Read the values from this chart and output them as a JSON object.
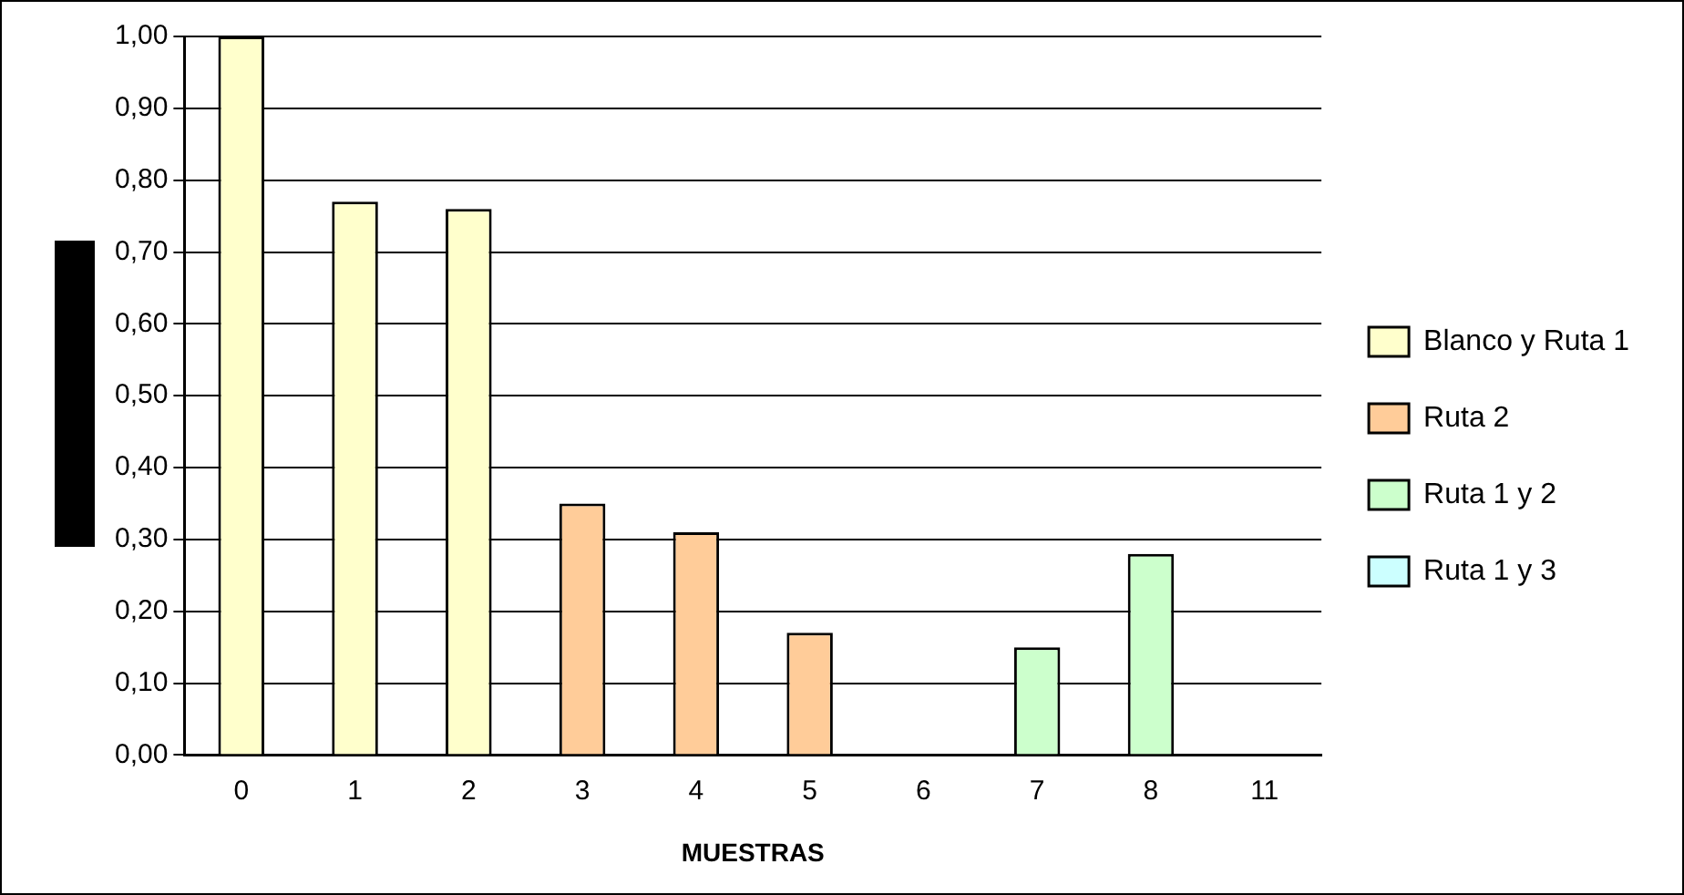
{
  "chart_data": {
    "type": "bar",
    "xlabel": "MUESTRAS",
    "categories": [
      "0",
      "1",
      "2",
      "3",
      "4",
      "5",
      "6",
      "7",
      "8",
      "11"
    ],
    "series": [
      {
        "name": "Blanco y Ruta 1",
        "color": "#ffffcc",
        "values": [
          1.0,
          0.77,
          0.76,
          null,
          null,
          null,
          null,
          null,
          null,
          null
        ]
      },
      {
        "name": "Ruta 2",
        "color": "#ffcc99",
        "values": [
          null,
          null,
          null,
          0.35,
          0.31,
          0.17,
          null,
          null,
          null,
          null
        ]
      },
      {
        "name": "Ruta 1 y 2",
        "color": "#ccffcc",
        "values": [
          null,
          null,
          null,
          null,
          null,
          null,
          0,
          0.15,
          0.28,
          null
        ]
      },
      {
        "name": "Ruta 1 y 3",
        "color": "#ccffff",
        "values": [
          null,
          null,
          null,
          null,
          null,
          null,
          null,
          null,
          null,
          0
        ]
      }
    ],
    "ylim": [
      0,
      1
    ],
    "yticks": [
      {
        "value": 0,
        "label": "0,00"
      },
      {
        "value": 0.1,
        "label": "0,10"
      },
      {
        "value": 0.2,
        "label": "0,20"
      },
      {
        "value": 0.3,
        "label": "0,30"
      },
      {
        "value": 0.4,
        "label": "0,40"
      },
      {
        "value": 0.5,
        "label": "0,50"
      },
      {
        "value": 0.6,
        "label": "0,60"
      },
      {
        "value": 0.7,
        "label": "0,70"
      },
      {
        "value": 0.8,
        "label": "0,80"
      },
      {
        "value": 0.9,
        "label": "0,90"
      },
      {
        "value": 1.0,
        "label": "1,00"
      }
    ],
    "grid": "y",
    "legend": "right"
  }
}
